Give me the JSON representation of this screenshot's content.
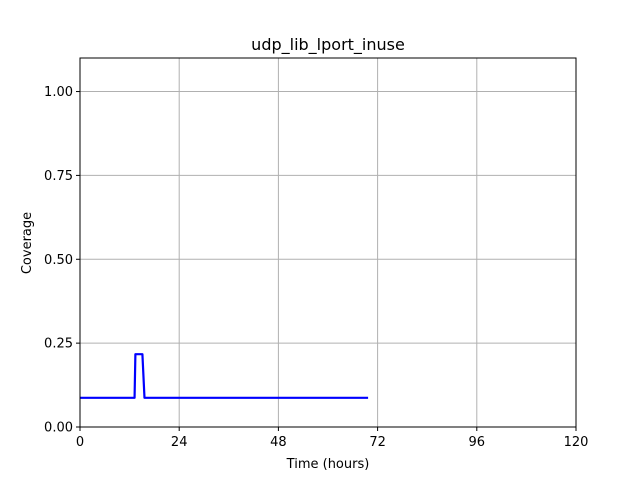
{
  "chart_data": {
    "type": "line",
    "title": "udp_lib_lport_inuse",
    "xlabel": "Time (hours)",
    "ylabel": "Coverage",
    "xlim": [
      0,
      120
    ],
    "ylim": [
      0,
      1.1
    ],
    "xticks": [
      0,
      24,
      48,
      72,
      96,
      120
    ],
    "xtick_labels": [
      "0",
      "24",
      "48",
      "72",
      "96",
      "120"
    ],
    "yticks": [
      0,
      0.25,
      0.5,
      0.75,
      1.0
    ],
    "ytick_labels": [
      "0.00",
      "0.25",
      "0.50",
      "0.75",
      "1.00"
    ],
    "grid": true,
    "series": [
      {
        "color": "#0000ff",
        "x": [
          0,
          13.2,
          13.4,
          15.1,
          15.6,
          69.7
        ],
        "y": [
          0.087,
          0.087,
          0.217,
          0.217,
          0.087,
          0.087
        ]
      }
    ]
  }
}
